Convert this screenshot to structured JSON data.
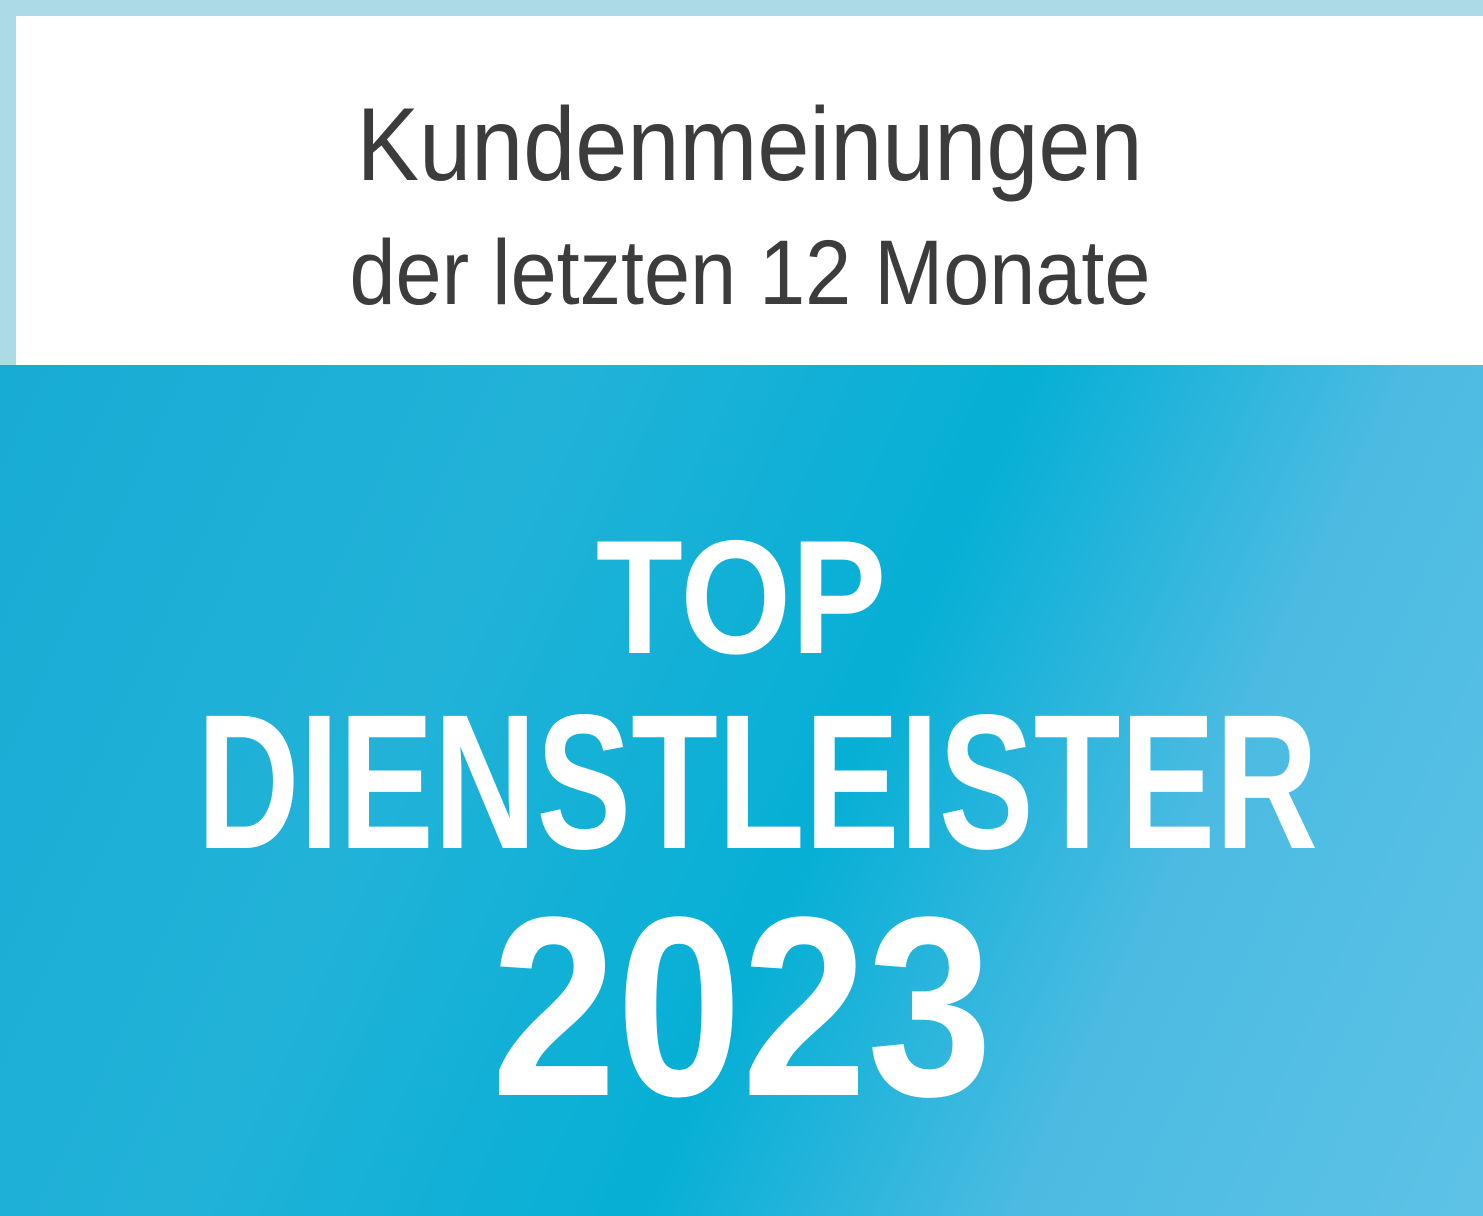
{
  "header": {
    "line1": "Kundenmeinungen",
    "line2": "der letzten 12 Monate"
  },
  "award": {
    "line1": "TOP",
    "line2": "DIENSTLEISTER",
    "year": "2023"
  },
  "colors": {
    "frame": "#acdbe6",
    "panel": "#ffffff",
    "badge_blue": "#1ab0d6",
    "badge_blue_light": "#5ec2e6",
    "text_dark": "#3c3c3c"
  }
}
